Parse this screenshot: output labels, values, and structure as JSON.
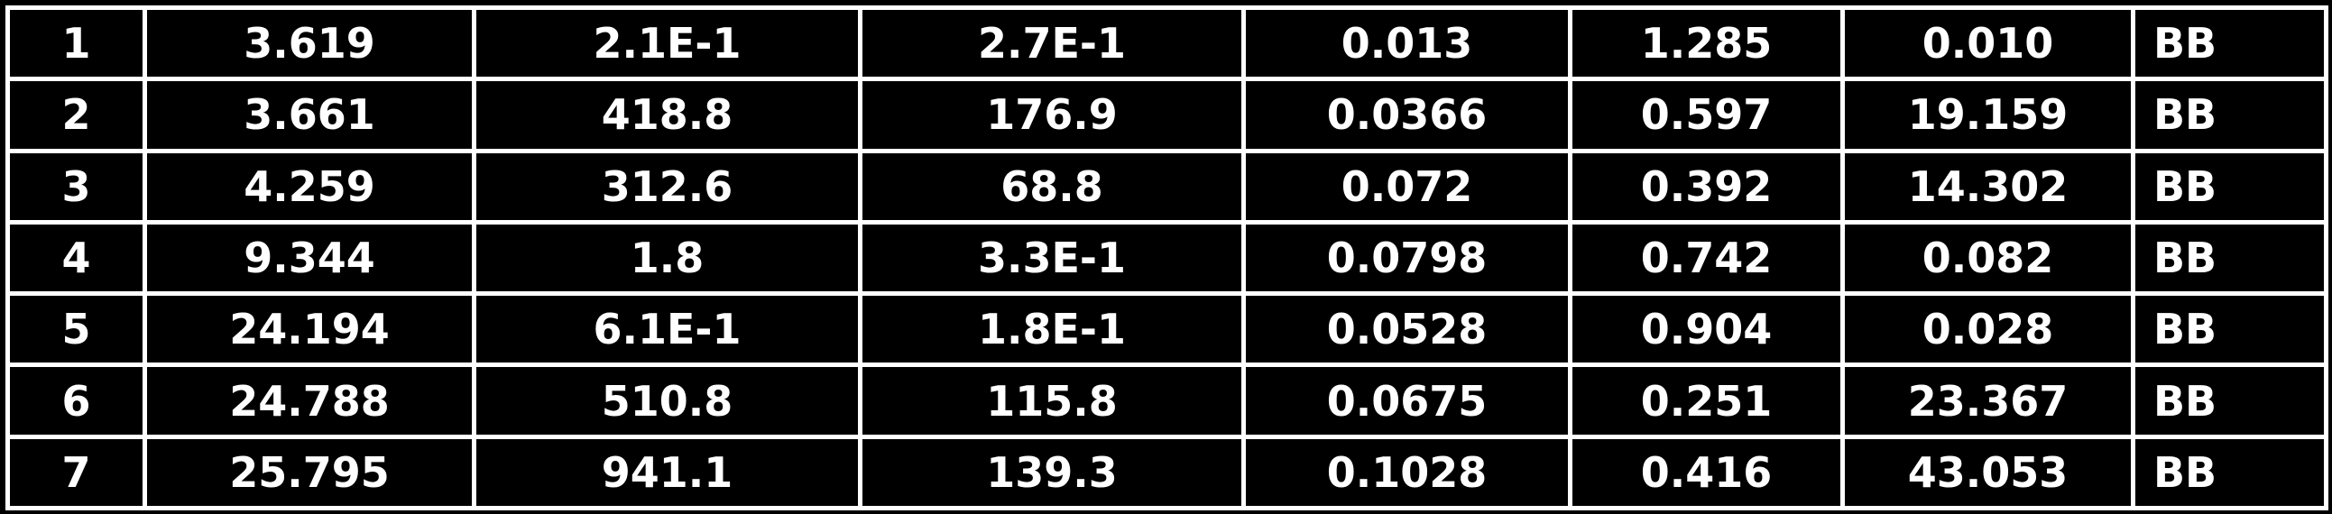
{
  "table": {
    "rows": [
      [
        "1",
        "3.619",
        "2.1E-1",
        "2.7E-1",
        "0.013",
        "1.285",
        "0.010",
        "BB"
      ],
      [
        "2",
        "3.661",
        "418.8",
        "176.9",
        "0.0366",
        "0.597",
        "19.159",
        "BB"
      ],
      [
        "3",
        "4.259",
        "312.6",
        "68.8",
        "0.072",
        "0.392",
        "14.302",
        "BB"
      ],
      [
        "4",
        "9.344",
        "1.8",
        "3.3E-1",
        "0.0798",
        "0.742",
        "0.082",
        "BB"
      ],
      [
        "5",
        "24.194",
        "6.1E-1",
        "1.8E-1",
        "0.0528",
        "0.904",
        "0.028",
        "BB"
      ],
      [
        "6",
        "24.788",
        "510.8",
        "115.8",
        "0.0675",
        "0.251",
        "23.367",
        "BB"
      ],
      [
        "7",
        "25.795",
        "941.1",
        "139.3",
        "0.1028",
        "0.416",
        "43.053",
        "BB"
      ]
    ]
  }
}
